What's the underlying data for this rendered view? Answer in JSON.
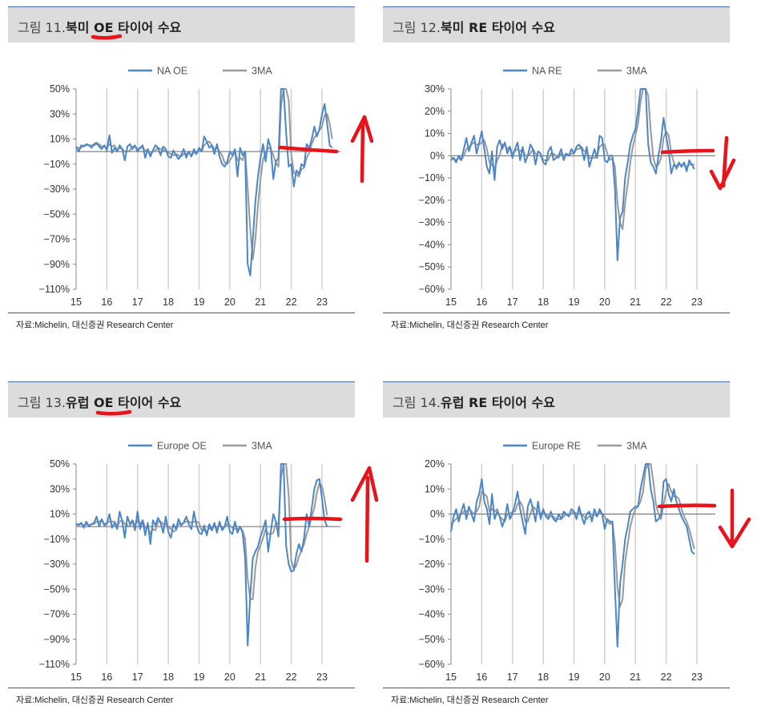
{
  "source_note": "자료:Michelin, 대신증권 Research Center",
  "colors": {
    "series_main": "#4a86c8",
    "series_ma": "#999999",
    "annotation": "#e8141b",
    "header_bg": "#dcdcdc"
  },
  "panels": [
    {
      "title_prefix": "그림 11.",
      "title_main": "북미 OE 타이어 수요",
      "chart_data": {
        "type": "line",
        "ylim": [
          -110,
          50
        ],
        "yticks": [
          -110,
          -90,
          -70,
          -50,
          -30,
          -10,
          10,
          30,
          50
        ],
        "ytick_labels": [
          "−110%",
          "−90%",
          "−70%",
          "−50%",
          "−30%",
          "−10%",
          "10%",
          "30%",
          "50%"
        ],
        "x_start": 2015.0,
        "x_step": 0.0833333,
        "xticks": [
          "15",
          "16",
          "17",
          "18",
          "19",
          "20",
          "21",
          "22",
          "23"
        ],
        "series": [
          {
            "name": "NA OE",
            "values": [
              4,
              0,
              5,
              4,
              6,
              5,
              3,
              6,
              7,
              4,
              2,
              5,
              1,
              13,
              -1,
              3,
              0,
              5,
              2,
              -7,
              4,
              6,
              2,
              5,
              0,
              3,
              5,
              -5,
              2,
              -4,
              1,
              5,
              3,
              -3,
              4,
              2,
              -4,
              -5,
              1,
              -3,
              -6,
              -3,
              2,
              -5,
              0,
              -4,
              2,
              -2,
              3,
              0,
              12,
              8,
              3,
              5,
              -2,
              6,
              -4,
              -10,
              -12,
              -8,
              0,
              -3,
              2,
              -20,
              3,
              -3,
              0,
              -90,
              -99,
              -70,
              -40,
              -20,
              -5,
              6,
              -8,
              10,
              3,
              -22,
              -8,
              -5,
              120,
              120,
              15,
              -12,
              -10,
              -28,
              -15,
              -18,
              -10,
              -12,
              6,
              3,
              10,
              20,
              12,
              18,
              30,
              38,
              22,
              5,
              3
            ]
          },
          {
            "name": "3MA",
            "values": [
              3,
              3,
              3,
              5,
              5,
              5,
              5,
              5,
              6,
              6,
              4,
              4,
              3,
              6,
              4,
              5,
              1,
              3,
              2,
              0,
              0,
              1,
              4,
              4,
              2,
              3,
              3,
              1,
              1,
              -2,
              0,
              1,
              3,
              2,
              1,
              1,
              -1,
              -2,
              -3,
              -2,
              -3,
              -4,
              -2,
              -2,
              -1,
              -3,
              -1,
              -1,
              1,
              0,
              5,
              7,
              8,
              5,
              2,
              3,
              0,
              -3,
              -9,
              -10,
              -7,
              -4,
              0,
              -7,
              -5,
              -7,
              0,
              -29,
              -62,
              -86,
              -70,
              -43,
              -22,
              -6,
              -2,
              3,
              2,
              -3,
              -9,
              -12,
              36,
              78,
              85,
              41,
              -2,
              -17,
              -18,
              -20,
              -14,
              -13,
              -5,
              -1,
              6,
              11,
              14,
              17,
              20,
              29,
              30,
              22,
              10
            ]
          }
        ]
      }
    },
    {
      "title_prefix": "그림 12.",
      "title_main": "북미 RE 타이어 수요",
      "chart_data": {
        "type": "line",
        "ylim": [
          -60,
          30
        ],
        "yticks": [
          -60,
          -50,
          -40,
          -30,
          -20,
          -10,
          0,
          10,
          20,
          30
        ],
        "ytick_labels": [
          "−60%",
          "−50%",
          "−40%",
          "−30%",
          "−20%",
          "−10%",
          "0%",
          "10%",
          "20%",
          "30%"
        ],
        "x_start": 2015.0,
        "x_step": 0.0833333,
        "xticks": [
          "15",
          "16",
          "17",
          "18",
          "19",
          "20",
          "21",
          "22",
          "23"
        ],
        "series": [
          {
            "name": "NA RE",
            "values": [
              -2,
              -1,
              -3,
              0,
              -2,
              3,
              8,
              2,
              6,
              9,
              1,
              6,
              11,
              3,
              -5,
              -8,
              2,
              -11,
              4,
              7,
              3,
              6,
              1,
              4,
              -1,
              3,
              6,
              -2,
              4,
              -3,
              0,
              5,
              3,
              -4,
              2,
              1,
              -3,
              -4,
              2,
              4,
              -2,
              -1,
              0,
              3,
              -2,
              1,
              0,
              3,
              1,
              4,
              5,
              3,
              -2,
              4,
              -5,
              -1,
              3,
              -1,
              9,
              8,
              -2,
              -3,
              0,
              0,
              -15,
              -47,
              -28,
              -25,
              -10,
              -3,
              5,
              9,
              12,
              20,
              40,
              45,
              30,
              5,
              -3,
              -5,
              -8,
              0,
              7,
              17,
              9,
              2,
              -8,
              -4,
              -5,
              -3,
              -5,
              -3,
              -7,
              -2,
              -4,
              -6
            ]
          },
          {
            "name": "3MA",
            "values": [
              -1,
              -1,
              -2,
              -1,
              -2,
              0,
              3,
              4,
              5,
              6,
              5,
              5,
              6,
              7,
              3,
              -3,
              -4,
              -6,
              -2,
              0,
              5,
              5,
              3,
              4,
              1,
              2,
              3,
              2,
              3,
              0,
              0,
              1,
              3,
              1,
              0,
              0,
              -2,
              -2,
              -2,
              1,
              1,
              0,
              -1,
              1,
              0,
              1,
              0,
              1,
              1,
              3,
              3,
              4,
              2,
              2,
              -1,
              -1,
              -1,
              0,
              4,
              5,
              5,
              1,
              -2,
              -1,
              -5,
              -21,
              -30,
              -33,
              -21,
              -13,
              -3,
              4,
              9,
              14,
              24,
              35,
              38,
              27,
              11,
              -1,
              -5,
              -4,
              -1,
              8,
              11,
              9,
              1,
              -3,
              -6,
              -4,
              -4,
              -4,
              -5,
              -4,
              -4,
              -4
            ]
          }
        ]
      }
    },
    {
      "title_prefix": "그림 13.",
      "title_main": "유럽 OE 타이어 수요",
      "chart_data": {
        "type": "line",
        "ylim": [
          -110,
          50
        ],
        "yticks": [
          -110,
          -90,
          -70,
          -50,
          -30,
          -10,
          10,
          30,
          50
        ],
        "ytick_labels": [
          "−110%",
          "−90%",
          "−70%",
          "−50%",
          "−30%",
          "−10%",
          "10%",
          "30%",
          "50%"
        ],
        "x_start": 2015.0,
        "x_step": 0.0833333,
        "xticks": [
          "15",
          "16",
          "17",
          "18",
          "19",
          "20",
          "21",
          "22",
          "23"
        ],
        "series": [
          {
            "name": "Europe OE",
            "values": [
              2,
              1,
              3,
              -1,
              4,
              0,
              2,
              3,
              8,
              0,
              6,
              1,
              2,
              10,
              -1,
              3,
              -2,
              12,
              4,
              -9,
              8,
              2,
              5,
              -3,
              12,
              -2,
              5,
              -7,
              3,
              -14,
              5,
              1,
              7,
              3,
              -5,
              8,
              -4,
              -9,
              2,
              -2,
              6,
              1,
              3,
              8,
              2,
              -2,
              12,
              1,
              -5,
              -6,
              1,
              -7,
              2,
              -3,
              3,
              -5,
              4,
              -3,
              0,
              8,
              -4,
              -6,
              4,
              -5,
              0,
              -5,
              -25,
              -95,
              -55,
              -25,
              -20,
              -16,
              -8,
              -2,
              5,
              -20,
              -4,
              10,
              4,
              -8,
              120,
              120,
              -15,
              -30,
              -36,
              -35,
              -22,
              -14,
              -20,
              -9,
              10,
              0,
              15,
              30,
              37,
              38,
              22,
              5,
              0
            ]
          },
          {
            "name": "3MA",
            "values": [
              2,
              2,
              2,
              1,
              2,
              1,
              2,
              2,
              4,
              4,
              5,
              2,
              3,
              4,
              4,
              4,
              0,
              4,
              5,
              2,
              1,
              0,
              5,
              1,
              5,
              2,
              5,
              -1,
              0,
              -6,
              -2,
              -3,
              4,
              4,
              2,
              2,
              0,
              -2,
              -4,
              -3,
              2,
              2,
              3,
              4,
              4,
              3,
              4,
              4,
              3,
              -3,
              -3,
              -4,
              -1,
              -3,
              1,
              -2,
              1,
              -1,
              0,
              2,
              1,
              -1,
              -2,
              -2,
              -1,
              -3,
              -10,
              -42,
              -58,
              -58,
              -33,
              -20,
              -15,
              -9,
              -2,
              -6,
              -6,
              -5,
              3,
              2,
              39,
              77,
              75,
              25,
              -27,
              -34,
              -31,
              -24,
              -19,
              -14,
              -6,
              0,
              8,
              15,
              27,
              35,
              32,
              22,
              9
            ]
          }
        ]
      }
    },
    {
      "title_prefix": "그림 14.",
      "title_main": "유럽 RE 타이어 수요",
      "chart_data": {
        "type": "line",
        "ylim": [
          -60,
          20
        ],
        "yticks": [
          -60,
          -50,
          -40,
          -30,
          -20,
          -10,
          0,
          10,
          20
        ],
        "ytick_labels": [
          "−60%",
          "−50%",
          "−40%",
          "−30%",
          "−20%",
          "−10%",
          "0%",
          "10%",
          "20%"
        ],
        "x_start": 2015.0,
        "x_step": 0.0833333,
        "xticks": [
          "15",
          "16",
          "17",
          "18",
          "19",
          "20",
          "21",
          "22",
          "23"
        ],
        "series": [
          {
            "name": "Europe RE",
            "values": [
              -7,
              -1,
              2,
              -3,
              1,
              4,
              -2,
              3,
              0,
              -3,
              5,
              8,
              14,
              5,
              2,
              -4,
              8,
              -2,
              1,
              -1,
              -5,
              -2,
              4,
              -2,
              0,
              4,
              9,
              2,
              -3,
              -8,
              3,
              6,
              2,
              -3,
              5,
              -2,
              2,
              -1,
              -2,
              1,
              -2,
              -3,
              0,
              -2,
              1,
              0,
              -1,
              2,
              1,
              -2,
              3,
              -1,
              -4,
              0,
              1,
              -3,
              2,
              -1,
              2,
              0,
              -6,
              -2,
              -3,
              -3,
              -30,
              -53,
              -28,
              -20,
              -10,
              -5,
              1,
              2,
              3,
              3,
              10,
              15,
              30,
              25,
              10,
              5,
              -3,
              -2,
              0,
              13,
              14,
              8,
              5,
              10,
              5,
              2,
              -1,
              -3,
              -5,
              -10,
              -15,
              -16
            ]
          },
          {
            "name": "3MA",
            "values": [
              -4,
              -3,
              -2,
              -1,
              0,
              1,
              1,
              2,
              1,
              0,
              1,
              3,
              9,
              8,
              7,
              1,
              2,
              1,
              2,
              -1,
              -2,
              -3,
              0,
              0,
              1,
              1,
              4,
              5,
              3,
              -3,
              -3,
              0,
              3,
              2,
              1,
              0,
              1,
              0,
              -1,
              -1,
              -1,
              -2,
              -2,
              -2,
              -1,
              0,
              0,
              0,
              1,
              0,
              1,
              0,
              -1,
              -2,
              -1,
              -1,
              0,
              -1,
              1,
              0,
              -1,
              -3,
              -4,
              -3,
              -12,
              -29,
              -37,
              -34,
              -19,
              -12,
              -5,
              -1,
              2,
              3,
              5,
              9,
              18,
              23,
              22,
              13,
              4,
              0,
              -2,
              4,
              9,
              12,
              9,
              7,
              7,
              6,
              2,
              -1,
              -3,
              -6,
              -10,
              -14
            ]
          }
        ]
      }
    }
  ]
}
